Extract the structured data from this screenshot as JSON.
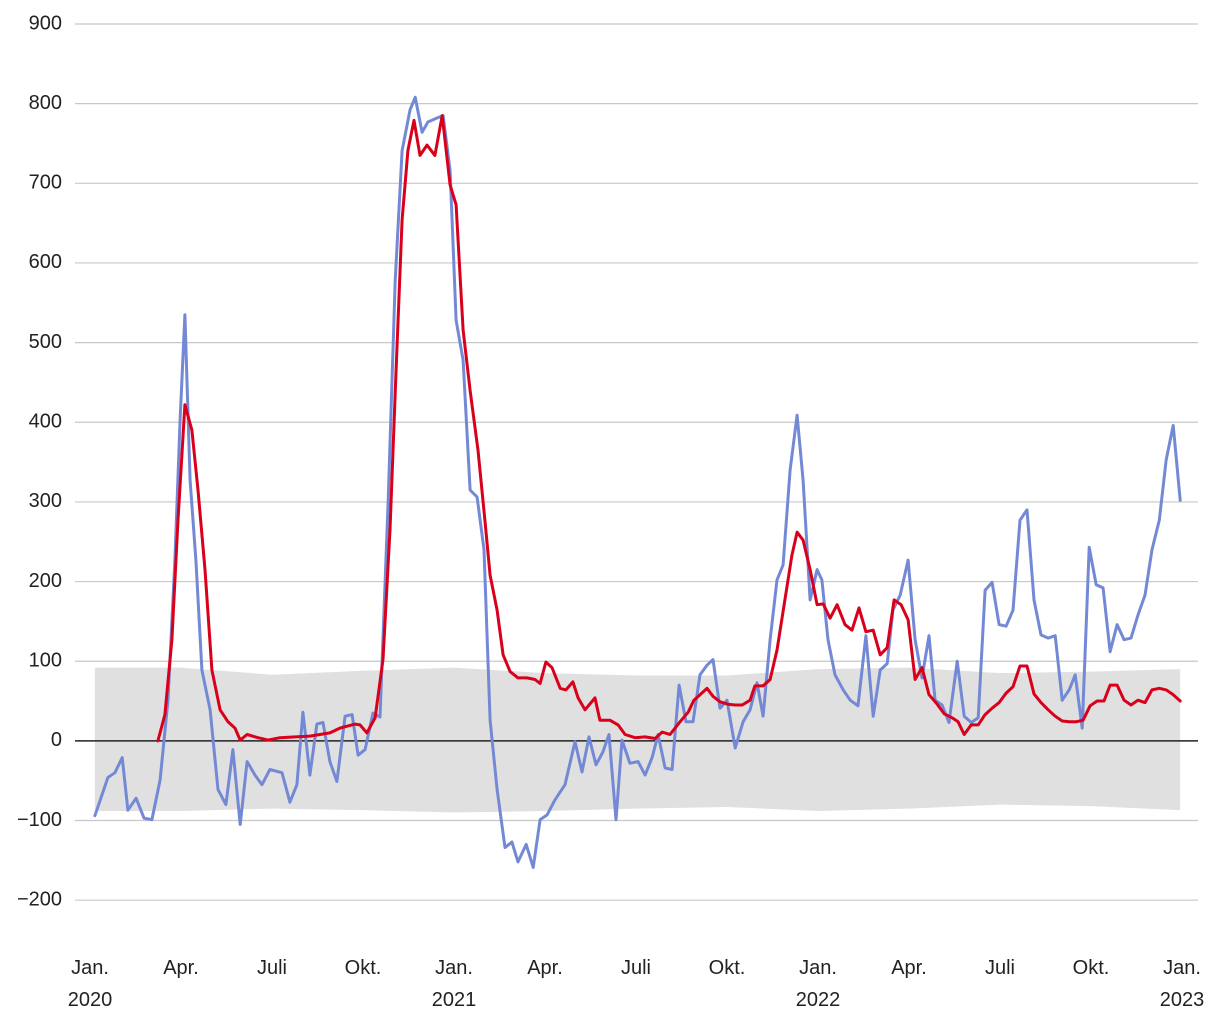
{
  "chart_data": {
    "type": "line",
    "xlim": [
      0,
      36
    ],
    "xticks": [
      {
        "value": 0,
        "label": "Jan.\n2020"
      },
      {
        "value": 3,
        "label": "Apr."
      },
      {
        "value": 6,
        "label": "Juli"
      },
      {
        "value": 9,
        "label": "Okt."
      },
      {
        "value": 12,
        "label": "Jan.\n2021"
      },
      {
        "value": 15,
        "label": "Apr."
      },
      {
        "value": 18,
        "label": "Juli"
      },
      {
        "value": 21,
        "label": "Okt."
      },
      {
        "value": 24,
        "label": "Jan.\n2022"
      },
      {
        "value": 27,
        "label": "Apr."
      },
      {
        "value": 30,
        "label": "Juli"
      },
      {
        "value": 33,
        "label": "Okt."
      },
      {
        "value": 36,
        "label": "Jan.\n2023"
      }
    ],
    "ylim": [
      -250,
      900
    ],
    "yticks": [
      {
        "value": -200,
        "label": "−200"
      },
      {
        "value": -100,
        "label": "−100"
      },
      0,
      100,
      200,
      300,
      400,
      500,
      600,
      700,
      800,
      900
    ],
    "grid": true,
    "band": {
      "color": "#e0e0e0",
      "x": [
        0.16,
        3,
        6,
        9,
        12,
        15,
        18,
        21,
        24,
        27,
        30,
        33,
        35.94
      ],
      "upper": [
        92,
        92,
        83,
        88,
        92,
        85,
        82,
        82,
        90,
        92,
        85,
        87,
        90
      ],
      "lower": [
        -88,
        -88,
        -85,
        -87,
        -90,
        -88,
        -85,
        -83,
        -88,
        -85,
        -80,
        -82,
        -87
      ]
    },
    "series": [
      {
        "color": "#7489d5",
        "x": [
          0.16,
          0.59,
          0.82,
          1.06,
          1.25,
          1.52,
          1.78,
          2.04,
          2.31,
          2.57,
          2.8,
          2.97,
          3.13,
          3.3,
          3.49,
          3.69,
          3.96,
          4.22,
          4.48,
          4.71,
          4.95,
          5.18,
          5.44,
          5.67,
          5.93,
          6.33,
          6.59,
          6.82,
          7.02,
          7.25,
          7.48,
          7.68,
          7.91,
          8.14,
          8.41,
          8.64,
          8.84,
          9.07,
          9.33,
          9.56,
          9.83,
          10.06,
          10.29,
          10.55,
          10.72,
          10.95,
          11.14,
          11.44,
          11.64,
          11.87,
          12.07,
          12.3,
          12.53,
          12.76,
          12.99,
          13.19,
          13.42,
          13.68,
          13.91,
          14.11,
          14.38,
          14.61,
          14.84,
          15.07,
          15.33,
          15.66,
          15.99,
          16.22,
          16.45,
          16.68,
          16.91,
          17.11,
          17.34,
          17.54,
          17.8,
          18.07,
          18.3,
          18.53,
          18.73,
          18.96,
          19.19,
          19.42,
          19.65,
          19.88,
          20.11,
          20.34,
          20.54,
          20.77,
          21.0,
          21.27,
          21.53,
          21.76,
          21.99,
          22.19,
          22.42,
          22.65,
          22.85,
          23.08,
          23.31,
          23.51,
          23.74,
          23.97,
          24.13,
          24.33,
          24.56,
          24.83,
          25.06,
          25.32,
          25.58,
          25.82,
          26.05,
          26.28,
          26.47,
          26.71,
          26.97,
          27.2,
          27.43,
          27.66,
          27.86,
          28.09,
          28.32,
          28.59,
          28.82,
          29.05,
          29.28,
          29.51,
          29.74,
          29.97,
          30.2,
          30.43,
          30.66,
          30.89,
          31.12,
          31.35,
          31.59,
          31.82,
          32.05,
          32.28,
          32.48,
          32.71,
          32.94,
          33.17,
          33.4,
          33.63,
          33.86,
          34.09,
          34.32,
          34.55,
          34.78,
          35.01,
          35.25,
          35.48,
          35.71,
          35.94
        ],
        "values": [
          -94,
          -46,
          -40,
          -21,
          -87,
          -72,
          -97,
          -99,
          -49,
          51,
          227,
          403,
          535,
          327,
          227,
          89,
          39,
          -61,
          -80,
          -11,
          -105,
          -26,
          -43,
          -55,
          -36,
          -40,
          -77,
          -55,
          36,
          -43,
          21,
          23,
          -26,
          -51,
          31,
          33,
          -18,
          -11,
          35,
          30,
          302,
          578,
          741,
          792,
          808,
          764,
          777,
          782,
          785,
          716,
          528,
          478,
          315,
          306,
          240,
          26,
          -61,
          -134,
          -127,
          -152,
          -130,
          -159,
          -99,
          -93,
          -74,
          -55,
          -1,
          -39,
          5,
          -30,
          -14,
          8,
          -99,
          1,
          -28,
          -26,
          -43,
          -21,
          8,
          -34,
          -36,
          70,
          24,
          24,
          83,
          95,
          102,
          41,
          51,
          -9,
          24,
          39,
          73,
          31,
          127,
          202,
          221,
          340,
          409,
          327,
          177,
          215,
          202,
          127,
          83,
          64,
          51,
          44,
          132,
          31,
          89,
          97,
          164,
          183,
          227,
          127,
          79,
          132,
          51,
          45,
          23,
          100,
          31,
          23,
          29,
          189,
          199,
          146,
          144,
          164,
          277,
          290,
          177,
          133,
          129,
          132,
          51,
          64,
          83,
          16,
          243,
          196,
          192,
          112,
          146,
          127,
          129,
          158,
          183,
          240,
          277,
          353,
          396,
          302
        ]
      },
      {
        "color": "#d9001b",
        "x": [
          2.24,
          2.47,
          2.7,
          2.9,
          3.13,
          3.36,
          3.56,
          3.79,
          4.02,
          4.29,
          4.55,
          4.78,
          4.95,
          5.18,
          5.54,
          5.87,
          6.26,
          6.76,
          7.25,
          7.58,
          7.91,
          8.24,
          8.74,
          8.9,
          9.13,
          9.4,
          9.66,
          9.89,
          10.09,
          10.29,
          10.48,
          10.68,
          10.88,
          11.11,
          11.37,
          11.61,
          11.87,
          12.07,
          12.3,
          12.53,
          12.79,
          13.02,
          13.19,
          13.42,
          13.62,
          13.85,
          14.11,
          14.41,
          14.67,
          14.84,
          15.03,
          15.23,
          15.5,
          15.69,
          15.92,
          16.09,
          16.32,
          16.65,
          16.81,
          17.14,
          17.41,
          17.64,
          17.97,
          18.3,
          18.63,
          18.86,
          19.12,
          19.45,
          19.72,
          19.91,
          20.11,
          20.34,
          20.54,
          20.77,
          21.03,
          21.27,
          21.5,
          21.76,
          21.92,
          22.19,
          22.42,
          22.65,
          22.91,
          23.14,
          23.31,
          23.51,
          23.74,
          23.97,
          24.17,
          24.4,
          24.63,
          24.89,
          25.12,
          25.35,
          25.58,
          25.82,
          26.05,
          26.28,
          26.51,
          26.74,
          26.97,
          27.2,
          27.43,
          27.66,
          27.93,
          28.16,
          28.42,
          28.62,
          28.82,
          29.05,
          29.28,
          29.51,
          29.74,
          29.97,
          30.2,
          30.43,
          30.66,
          30.89,
          31.12,
          31.35,
          31.59,
          31.82,
          32.05,
          32.28,
          32.51,
          32.74,
          32.97,
          33.2,
          33.43,
          33.63,
          33.86,
          34.09,
          34.32,
          34.55,
          34.78,
          35.01,
          35.25,
          35.48,
          35.71,
          35.94
        ],
        "values": [
          0,
          33,
          127,
          277,
          422,
          390,
          315,
          215,
          89,
          39,
          24,
          16,
          1,
          8,
          4,
          1,
          4,
          5,
          6,
          8,
          10,
          16,
          21,
          20,
          10,
          29,
          102,
          265,
          466,
          654,
          741,
          779,
          735,
          748,
          735,
          785,
          698,
          673,
          516,
          440,
          365,
          277,
          208,
          164,
          108,
          87,
          79,
          79,
          77,
          72,
          99,
          92,
          66,
          64,
          74,
          54,
          39,
          54,
          26,
          26,
          20,
          8,
          4,
          5,
          3,
          11,
          8,
          24,
          36,
          51,
          58,
          66,
          56,
          49,
          46,
          45,
          45,
          51,
          69,
          69,
          77,
          114,
          177,
          233,
          262,
          252,
          215,
          171,
          172,
          154,
          171,
          146,
          139,
          167,
          137,
          139,
          108,
          117,
          177,
          171,
          152,
          77,
          92,
          58,
          46,
          34,
          29,
          24,
          8,
          20,
          20,
          33,
          41,
          48,
          60,
          68,
          94,
          94,
          59,
          48,
          39,
          31,
          25,
          24,
          24,
          26,
          44,
          50,
          50,
          70,
          70,
          51,
          45,
          51,
          48,
          64,
          66,
          64,
          58,
          50
        ]
      }
    ]
  }
}
